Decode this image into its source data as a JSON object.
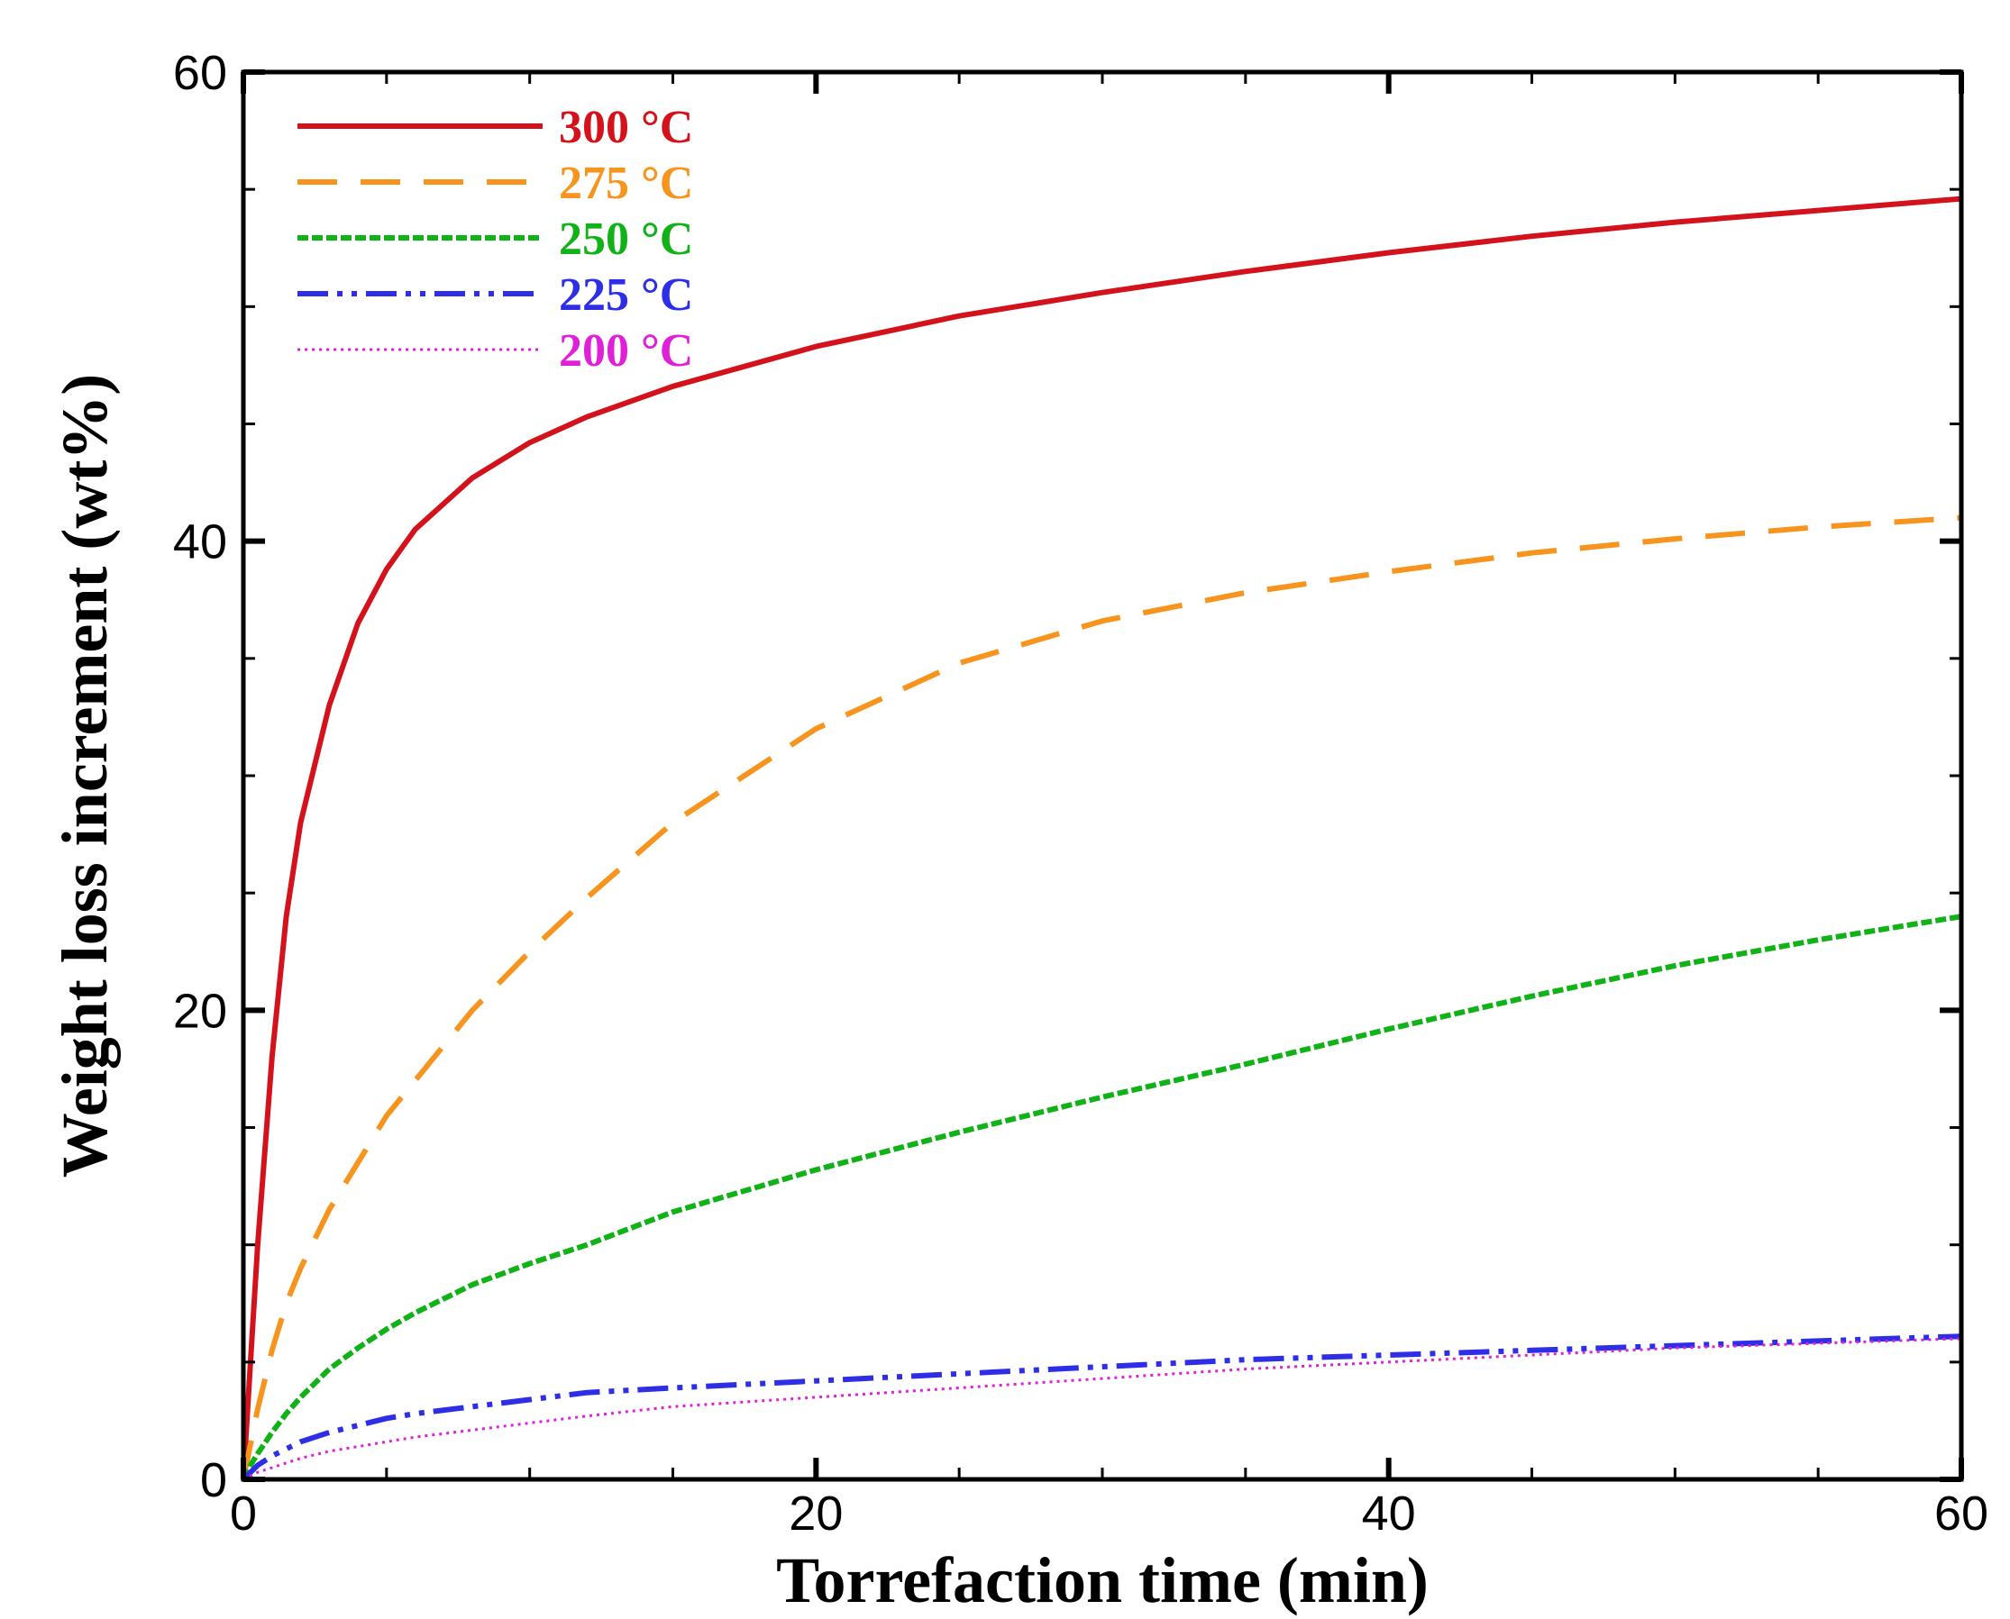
{
  "chart_data": {
    "type": "line",
    "title": "",
    "xlabel": "Torrefaction time (min)",
    "ylabel": "Weight loss increment (wt%)",
    "xlim": [
      0,
      60
    ],
    "ylim": [
      0,
      60
    ],
    "xticks": [
      0,
      20,
      40,
      60
    ],
    "yticks": [
      0,
      20,
      40,
      60
    ],
    "x_minor_step": 5,
    "y_minor_step": 5,
    "grid": false,
    "legend_position": "top-left",
    "x": [
      0,
      0.25,
      0.5,
      1,
      1.5,
      2,
      3,
      4,
      5,
      6,
      8,
      10,
      12,
      15,
      20,
      25,
      30,
      35,
      40,
      45,
      50,
      55,
      60
    ],
    "series": [
      {
        "name": "300 °C",
        "color": "#d3121b",
        "dash": "solid",
        "values": [
          0,
          5,
          10,
          18,
          24,
          28,
          33,
          36.5,
          38.8,
          40.5,
          42.7,
          44.2,
          45.3,
          46.6,
          48.3,
          49.6,
          50.6,
          51.5,
          52.3,
          53,
          53.6,
          54.1,
          54.6
        ]
      },
      {
        "name": "275 °C",
        "color": "#f7941d",
        "dash": "dashed",
        "values": [
          0,
          1.5,
          3,
          5.5,
          7.5,
          9,
          11.5,
          13.5,
          15.5,
          17,
          20,
          22.5,
          24.8,
          28,
          32,
          34.8,
          36.6,
          37.8,
          38.7,
          39.5,
          40.1,
          40.6,
          41
        ]
      },
      {
        "name": "250 °C",
        "color": "#11b217",
        "dash": "dotted",
        "values": [
          0,
          0.6,
          1.1,
          2,
          2.8,
          3.5,
          4.7,
          5.6,
          6.4,
          7.1,
          8.3,
          9.2,
          10,
          11.4,
          13.2,
          14.8,
          16.3,
          17.7,
          19.2,
          20.6,
          21.9,
          23,
          24
        ]
      },
      {
        "name": "225 °C",
        "color": "#2e2ee6",
        "dash": "dash-dot-dot",
        "values": [
          0,
          0.3,
          0.6,
          1,
          1.3,
          1.6,
          2,
          2.3,
          2.6,
          2.8,
          3.1,
          3.4,
          3.7,
          3.9,
          4.2,
          4.5,
          4.8,
          5.1,
          5.3,
          5.5,
          5.7,
          5.9,
          6.1
        ]
      },
      {
        "name": "200 °C",
        "color": "#e020d8",
        "dash": "fine-dotted",
        "values": [
          0,
          0.15,
          0.3,
          0.5,
          0.7,
          0.9,
          1.2,
          1.4,
          1.6,
          1.8,
          2.1,
          2.4,
          2.7,
          3.1,
          3.5,
          3.9,
          4.3,
          4.7,
          5,
          5.3,
          5.6,
          5.8,
          6
        ]
      }
    ]
  }
}
